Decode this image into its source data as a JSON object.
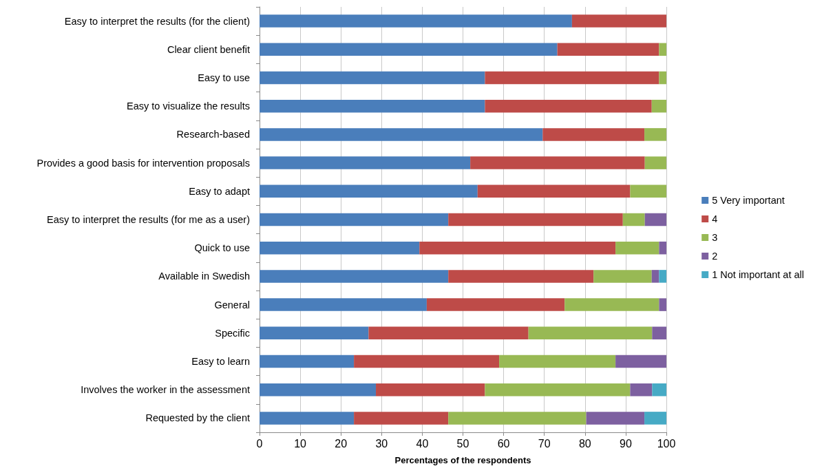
{
  "chart_data": {
    "type": "bar",
    "orientation": "horizontal",
    "stacked": true,
    "xlabel": "Percentages of the respondents",
    "categories": [
      "Easy to interpret the results (for the client)",
      "Clear client benefit",
      "Easy to use",
      "Easy to visualize the results",
      "Research-based",
      "Provides a good basis for intervention proposals",
      "Easy to adapt",
      "Easy to interpret the results (for me as a user)",
      "Quick to use",
      "Available in Swedish",
      "General",
      "Specific",
      "Easy to learn",
      "Involves the worker in the assessment",
      "Requested by the client"
    ],
    "series": [
      {
        "name": "5 Very important",
        "color": "#4a7ebb",
        "values": [
          76.8,
          73.2,
          55.4,
          55.4,
          69.6,
          51.8,
          53.6,
          46.4,
          39.3,
          46.4,
          41.1,
          26.8,
          23.2,
          28.6,
          23.2
        ]
      },
      {
        "name": "4",
        "color": "#be4b48",
        "values": [
          23.2,
          25.0,
          42.8,
          41.0,
          25.0,
          42.9,
          37.5,
          42.9,
          48.2,
          35.7,
          33.9,
          39.3,
          35.7,
          26.8,
          23.2
        ]
      },
      {
        "name": "3",
        "color": "#98b954",
        "values": [
          null,
          1.8,
          1.8,
          3.6,
          5.4,
          5.3,
          8.9,
          5.4,
          10.7,
          14.3,
          23.2,
          30.4,
          28.6,
          35.7,
          33.9
        ]
      },
      {
        "name": "2",
        "color": "#7d60a0",
        "values": [
          null,
          null,
          null,
          null,
          null,
          null,
          null,
          5.3,
          1.8,
          1.8,
          1.8,
          3.5,
          12.5,
          5.4,
          14.3
        ]
      },
      {
        "name": "1 Not important at all",
        "color": "#46aac5",
        "values": [
          null,
          null,
          null,
          null,
          null,
          null,
          null,
          null,
          null,
          1.8,
          null,
          null,
          null,
          3.5,
          5.4
        ]
      }
    ],
    "xlim": [
      0,
      100
    ],
    "xticks": [
      0,
      10,
      20,
      30,
      40,
      50,
      60,
      70,
      80,
      90,
      100
    ],
    "grid": "x",
    "legend": "right"
  }
}
